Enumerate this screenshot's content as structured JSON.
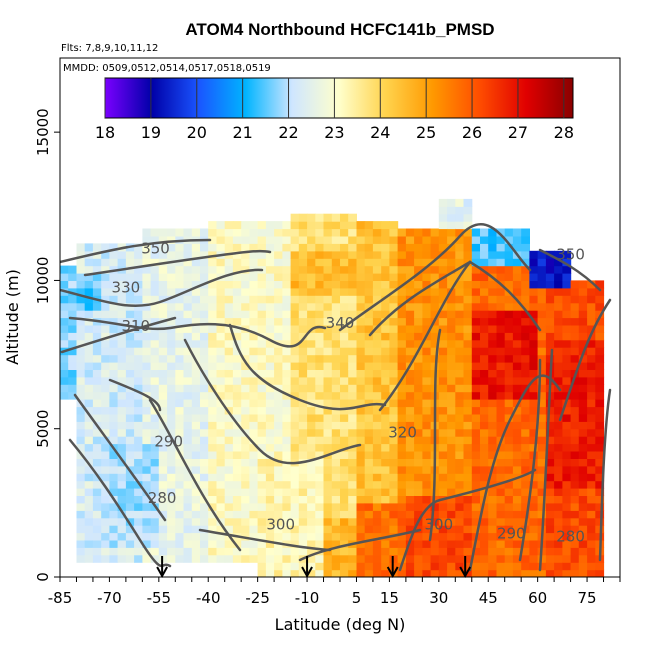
{
  "chart_data": {
    "type": "heatmap",
    "title": "ATOM4 Northbound HCFC141b_PMSD",
    "subtitle_flights": "Flts: 7,8,9,10,11,12",
    "subtitle_dates": "MMDD: 0509,0512,0514,0517,0518,0519",
    "xlabel": "Latitude (deg N)",
    "ylabel": "Altitude (m)",
    "xlim": [
      -85,
      85
    ],
    "ylim": [
      0,
      17500
    ],
    "x_ticks": [
      -85,
      -70,
      -55,
      -40,
      -25,
      -10,
      5,
      15,
      30,
      45,
      60,
      75
    ],
    "y_ticks": [
      0,
      5000,
      10000,
      15000
    ],
    "colorbar": {
      "range": [
        18,
        28.2
      ],
      "ticks": [
        18,
        19,
        20,
        21,
        22,
        23,
        24,
        25,
        26,
        27,
        28
      ],
      "colors": [
        "#7a00ff",
        "#0000a8",
        "#1a55ff",
        "#00b4ff",
        "#cfe6ff",
        "#ffffcc",
        "#ffd34d",
        "#ff9900",
        "#ff4d00",
        "#e00000",
        "#8a0000"
      ]
    },
    "contour_labels": [
      {
        "value": "350",
        "lat": -56,
        "alt": 10900
      },
      {
        "value": "330",
        "lat": -65,
        "alt": 9600
      },
      {
        "value": "310",
        "lat": -62,
        "alt": 8300
      },
      {
        "value": "340",
        "lat": 0,
        "alt": 8400
      },
      {
        "value": "320",
        "lat": 19,
        "alt": 4700
      },
      {
        "value": "290",
        "lat": -52,
        "alt": 4400
      },
      {
        "value": "280",
        "lat": -54,
        "alt": 2500
      },
      {
        "value": "300",
        "lat": -18,
        "alt": 1600
      },
      {
        "value": "300",
        "lat": 30,
        "alt": 1600
      },
      {
        "value": "290",
        "lat": 52,
        "alt": 1300
      },
      {
        "value": "280",
        "lat": 70,
        "alt": 1200
      },
      {
        "value": "350",
        "lat": 70,
        "alt": 10700
      }
    ],
    "profile_markers": [
      -54,
      -10,
      16,
      38
    ],
    "regions": [
      {
        "lat0": -85,
        "lat1": -80,
        "alt0": 6000,
        "alt1": 10500,
        "value": 21.7
      },
      {
        "lat0": -80,
        "lat1": -60,
        "alt0": 600,
        "alt1": 11200,
        "value": 22.3
      },
      {
        "lat0": -80,
        "lat1": -72,
        "alt0": 9000,
        "alt1": 10200,
        "value": 21.5
      },
      {
        "lat0": -72,
        "lat1": -55,
        "alt0": 1000,
        "alt1": 4500,
        "value": 21.9
      },
      {
        "lat0": -60,
        "lat1": -40,
        "alt0": 600,
        "alt1": 11800,
        "value": 22.6
      },
      {
        "lat0": -40,
        "lat1": -15,
        "alt0": 600,
        "alt1": 12000,
        "value": 23.1
      },
      {
        "lat0": -25,
        "lat1": -5,
        "alt0": 0,
        "alt1": 4000,
        "value": 23.3
      },
      {
        "lat0": -15,
        "lat1": 5,
        "alt0": 0,
        "alt1": 12200,
        "value": 23.8
      },
      {
        "lat0": -5,
        "lat1": 5,
        "alt0": 0,
        "alt1": 2000,
        "value": 24.6
      },
      {
        "lat0": -15,
        "lat1": 10,
        "alt0": 9500,
        "alt1": 11000,
        "value": 24.5
      },
      {
        "lat0": 5,
        "lat1": 18,
        "alt0": 0,
        "alt1": 12000,
        "value": 24.4
      },
      {
        "lat0": 5,
        "lat1": 20,
        "alt0": 0,
        "alt1": 2600,
        "value": 25.7
      },
      {
        "lat0": 18,
        "lat1": 40,
        "alt0": 0,
        "alt1": 11800,
        "value": 25.2
      },
      {
        "lat0": 20,
        "lat1": 40,
        "alt0": 0,
        "alt1": 2800,
        "value": 26.2
      },
      {
        "lat0": 40,
        "lat1": 62,
        "alt0": 0,
        "alt1": 10500,
        "value": 25.8
      },
      {
        "lat0": 40,
        "lat1": 60,
        "alt0": 6000,
        "alt1": 9000,
        "value": 26.9
      },
      {
        "lat0": 62,
        "lat1": 80,
        "alt0": 0,
        "alt1": 10000,
        "value": 26.2
      },
      {
        "lat0": 62,
        "lat1": 80,
        "alt0": 3000,
        "alt1": 8000,
        "value": 26.8
      },
      {
        "lat0": 40,
        "lat1": 58,
        "alt0": 10500,
        "alt1": 11800,
        "value": 21.4
      },
      {
        "lat0": 58,
        "lat1": 70,
        "alt0": 9800,
        "alt1": 11000,
        "value": 19.3
      },
      {
        "lat0": 30,
        "lat1": 40,
        "alt0": 11800,
        "alt1": 12800,
        "value": 22.5
      }
    ]
  }
}
